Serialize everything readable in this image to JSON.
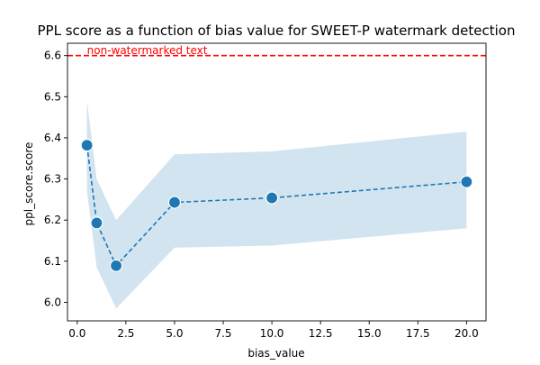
{
  "chart_data": {
    "type": "line",
    "title": "PPL score as a function of bias value for SWEET-P watermark detection",
    "xlabel": "bias_value",
    "ylabel": "ppl_score.score",
    "xlim": [
      -0.5,
      21.0
    ],
    "ylim": [
      5.955,
      6.63
    ],
    "x_ticks": [
      0.0,
      2.5,
      5.0,
      7.5,
      10.0,
      12.5,
      15.0,
      17.5,
      20.0
    ],
    "x_tick_labels": [
      "0.0",
      "2.5",
      "5.0",
      "7.5",
      "10.0",
      "12.5",
      "15.0",
      "17.5",
      "20.0"
    ],
    "y_ticks": [
      6.0,
      6.1,
      6.2,
      6.3,
      6.4,
      6.5,
      6.6
    ],
    "y_tick_labels": [
      "6.0",
      "6.1",
      "6.2",
      "6.3",
      "6.4",
      "6.5",
      "6.6"
    ],
    "grid": false,
    "series": [
      {
        "x": [
          0.5,
          1.0,
          2.0,
          5.0,
          10.0,
          20.0
        ],
        "values": [
          6.382,
          6.193,
          6.089,
          6.243,
          6.254,
          6.293
        ],
        "ci_upper": [
          6.49,
          6.3,
          6.2,
          6.36,
          6.367,
          6.415
        ],
        "ci_lower": [
          6.27,
          6.085,
          5.985,
          6.133,
          6.138,
          6.18
        ],
        "color": "#1f77b4",
        "band_color": "#1f77b4",
        "line_style": "dashed",
        "marker": "circle"
      }
    ],
    "reference_line": {
      "y": 6.6,
      "label": "non-watermarked text",
      "color": "#ff0000",
      "line_style": "dashed"
    }
  }
}
